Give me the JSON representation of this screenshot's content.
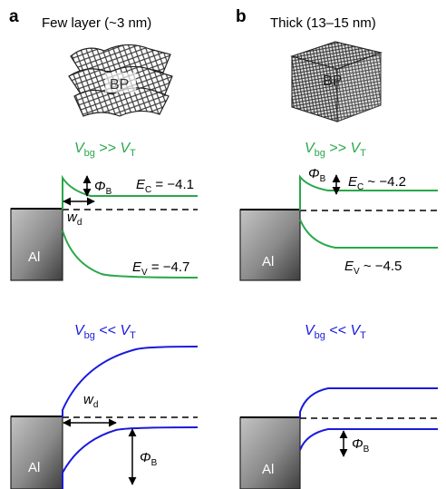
{
  "panels": [
    {
      "letter": "a",
      "title": "Few layer (~3 nm)",
      "material": "BP",
      "metal": "Al",
      "top": {
        "cond_V": "V",
        "cond_V_sub": "bg",
        "cond_op": " >> ",
        "cond_T": "V",
        "cond_T_sub": "T",
        "Ec_E": "E",
        "Ec_sub": "C",
        "Ec_val": " = −4.1",
        "Ev_E": "E",
        "Ev_sub": "V",
        "Ev_val": " = −4.7",
        "phi": "Φ",
        "phi_sub": "B",
        "w": "w",
        "w_sub": "d"
      },
      "bottom": {
        "cond_V": "V",
        "cond_V_sub": "bg",
        "cond_op": " << ",
        "cond_T": "V",
        "cond_T_sub": "T",
        "phi": "Φ",
        "phi_sub": "B",
        "w": "w",
        "w_sub": "d"
      }
    },
    {
      "letter": "b",
      "title": "Thick (13–15 nm)",
      "material": "BP",
      "metal": "Al",
      "top": {
        "cond_V": "V",
        "cond_V_sub": "bg",
        "cond_op": " >> ",
        "cond_T": "V",
        "cond_T_sub": "T",
        "Ec_E": "E",
        "Ec_sub": "C",
        "Ec_val": " ~ −4.2",
        "Ev_E": "E",
        "Ev_sub": "V",
        "Ev_val": " ~ −4.5",
        "phi": "Φ",
        "phi_sub": "B"
      },
      "bottom": {
        "cond_V": "V",
        "cond_V_sub": "bg",
        "cond_op": " << ",
        "cond_T": "V",
        "cond_T_sub": "T",
        "phi": "Φ",
        "phi_sub": "B"
      }
    }
  ],
  "colors": {
    "green": "#2aa84a",
    "blue": "#1a1adc",
    "black": "#000000",
    "metal_light": "#b8b8b8",
    "metal_dark": "#4a4a4a"
  }
}
